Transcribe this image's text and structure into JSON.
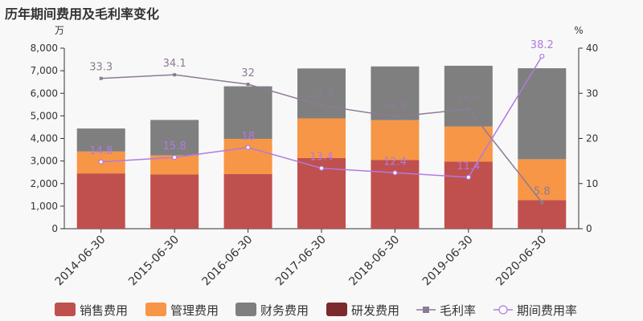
{
  "title": "历年期间费用及毛利率变化",
  "chart_data": {
    "type": "bar",
    "title": "历年期间费用及毛利率变化",
    "categories": [
      "2014-06-30",
      "2015-06-30",
      "2016-06-30",
      "2017-06-30",
      "2018-06-30",
      "2019-06-30",
      "2020-06-30"
    ],
    "y_left": {
      "unit": "万",
      "ylim": [
        0,
        8000
      ],
      "ticks": [
        0,
        1000,
        2000,
        3000,
        4000,
        5000,
        6000,
        7000,
        8000
      ]
    },
    "y_right": {
      "unit": "%",
      "ylim": [
        0,
        40
      ],
      "ticks": [
        0,
        10,
        20,
        30,
        40
      ]
    },
    "series": [
      {
        "name": "销售费用",
        "kind": "bar",
        "axis": "left",
        "color": "#c0504d",
        "values": [
          2450,
          2400,
          2420,
          3130,
          3050,
          2970,
          1270
        ]
      },
      {
        "name": "管理费用",
        "kind": "bar",
        "axis": "left",
        "color": "#f79646",
        "values": [
          970,
          850,
          1560,
          1760,
          1760,
          1560,
          1810
        ]
      },
      {
        "name": "财务费用",
        "kind": "bar",
        "axis": "left",
        "color": "#7f7f7f",
        "values": [
          1020,
          1570,
          2330,
          2210,
          2380,
          2690,
          4030
        ]
      },
      {
        "name": "研发费用",
        "kind": "bar",
        "axis": "left",
        "color": "#7b2b2b",
        "values": [
          0,
          0,
          0,
          0,
          0,
          0,
          0
        ]
      },
      {
        "name": "毛利率",
        "kind": "line",
        "axis": "right",
        "color": "#8c7b94",
        "marker": "square",
        "values": [
          33.3,
          34.1,
          32,
          27.3,
          24.8,
          26.5,
          5.8
        ]
      },
      {
        "name": "期间费用率",
        "kind": "line",
        "axis": "right",
        "color": "#b07ae0",
        "marker": "circle",
        "values": [
          14.8,
          15.8,
          18,
          13.4,
          12.4,
          11.4,
          38.2
        ]
      }
    ],
    "grid": false,
    "legend": "bottom"
  }
}
